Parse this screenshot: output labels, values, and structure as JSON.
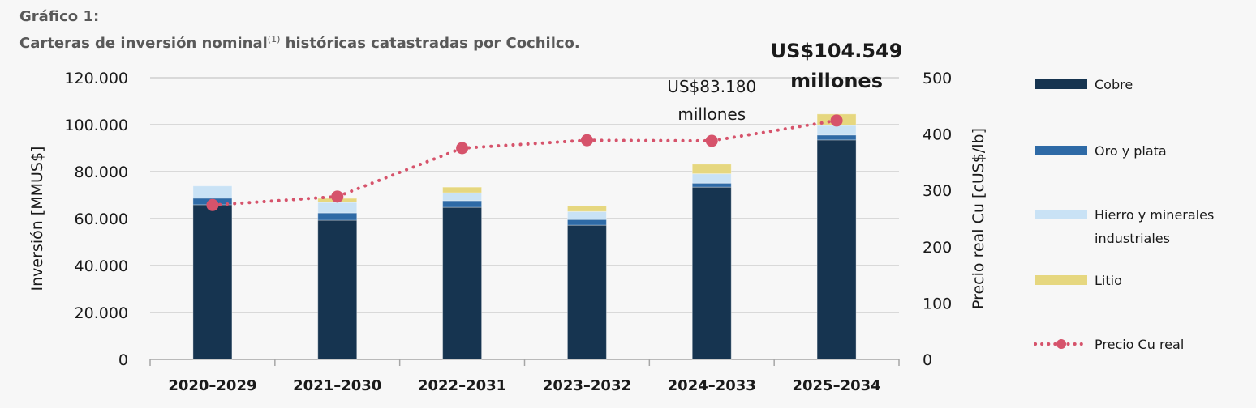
{
  "header": {
    "label": "Gráfico 1:",
    "title": "Carteras de inversión nominal",
    "superscript": "(1)",
    "title_rest": "históricas catastradas por Cochilco."
  },
  "chart_data": {
    "type": "bar",
    "stacked": true,
    "categories": [
      "2020-2029",
      "2021-2030",
      "2022-2031",
      "2023-2032",
      "2024-2033",
      "2025-2034"
    ],
    "series": [
      {
        "name": "Cobre",
        "color": "#163450",
        "values": [
          65900,
          59300,
          64800,
          57200,
          73400,
          93500
        ]
      },
      {
        "name": "Oro y plata",
        "color": "#2e6aa6",
        "values": [
          2800,
          3100,
          2800,
          2400,
          1700,
          2100
        ]
      },
      {
        "name": "Hierro y minerales industriales",
        "color": "#c9e2f5",
        "values": [
          5200,
          4500,
          3400,
          3400,
          4000,
          4100
        ]
      },
      {
        "name": "Litio",
        "color": "#e6d77f",
        "values": [
          0,
          1700,
          2400,
          2400,
          4100,
          4849
        ]
      }
    ],
    "line_series": {
      "name": "Precio Cu real",
      "color": "#d6536b",
      "axis": "right",
      "style": "dotted",
      "values": [
        274,
        289,
        375,
        389,
        388,
        424
      ]
    },
    "ylabel": "Inversión [MMUS$]",
    "ylim": [
      0,
      120000
    ],
    "yticks": [
      "0",
      "20.000",
      "40.000",
      "60.000",
      "80.000",
      "100.000",
      "120.000"
    ],
    "y2label": "Precio real Cu [cUS$/lb]",
    "y2lim": [
      0,
      500
    ],
    "y2ticks": [
      "0",
      "100",
      "200",
      "300",
      "400",
      "500"
    ],
    "grid": true,
    "legend": "right",
    "annotations": [
      {
        "category": "2024-2033",
        "line1": "US$83.180",
        "line2": "millones",
        "bold": false
      },
      {
        "category": "2025-2034",
        "line1": "US$104.549",
        "line2": "millones",
        "bold": true
      }
    ]
  }
}
